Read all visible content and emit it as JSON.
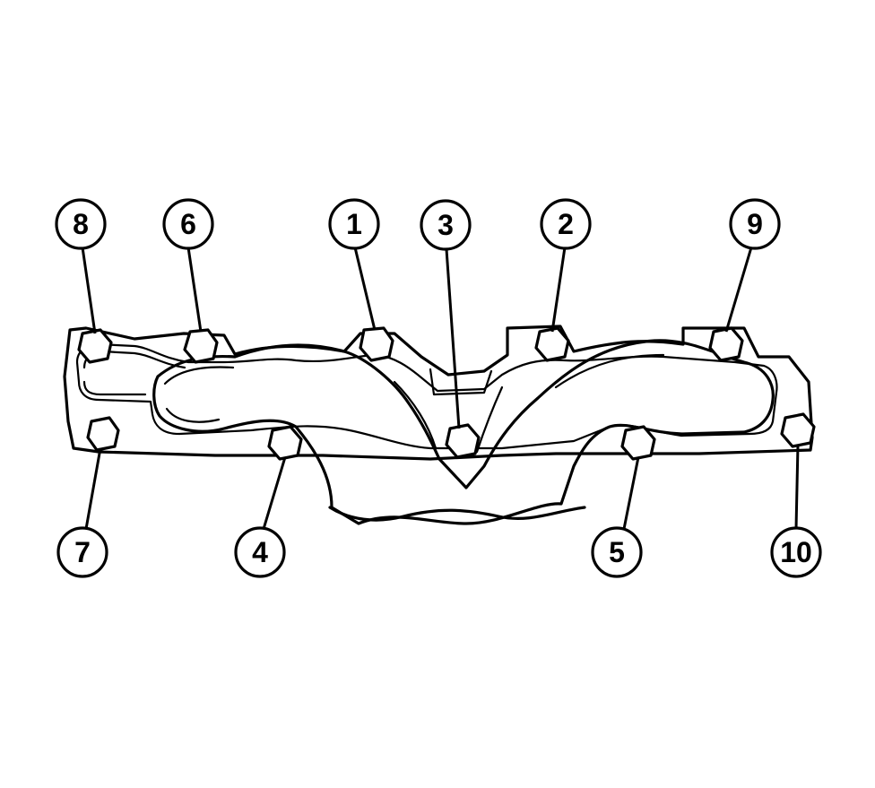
{
  "diagram": {
    "stroke_color": "#000000",
    "background_color": "#ffffff",
    "callouts": [
      {
        "id": "8",
        "text": "8"
      },
      {
        "id": "6",
        "text": "6"
      },
      {
        "id": "1",
        "text": "1"
      },
      {
        "id": "3",
        "text": "3"
      },
      {
        "id": "2",
        "text": "2"
      },
      {
        "id": "9",
        "text": "9"
      },
      {
        "id": "7",
        "text": "7"
      },
      {
        "id": "4",
        "text": "4"
      },
      {
        "id": "5",
        "text": "5"
      },
      {
        "id": "10",
        "text": "10"
      }
    ]
  }
}
